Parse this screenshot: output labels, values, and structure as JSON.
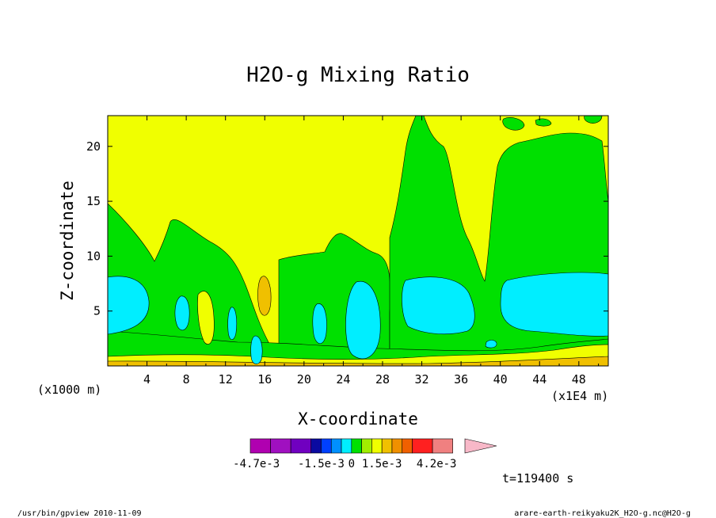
{
  "chart_data": {
    "type": "heatmap",
    "title": "H2O-g Mixing Ratio",
    "xlabel": "X-coordinate",
    "ylabel": "Z-coordinate",
    "x_unit_note": "(x1E4 m)",
    "y_unit_note": "(x1000 m)",
    "xlim": [
      0,
      51
    ],
    "ylim": [
      0,
      22.8
    ],
    "x_ticks": [
      "4",
      "8",
      "12",
      "16",
      "20",
      "24",
      "28",
      "32",
      "36",
      "40",
      "44",
      "48"
    ],
    "x_tick_values": [
      4,
      8,
      12,
      16,
      20,
      24,
      28,
      32,
      36,
      40,
      44,
      48
    ],
    "y_ticks": [
      "5",
      "10",
      "15",
      "20"
    ],
    "y_tick_values": [
      5,
      10,
      15,
      20
    ],
    "timestamp": "t=119400 s",
    "colorbar": {
      "labels": [
        "-4.7e-3",
        "-1.5e-3",
        "0",
        "1.5e-3",
        "4.2e-3"
      ],
      "label_positions": [
        -4.7,
        -1.5,
        0,
        1.5,
        4.2
      ],
      "range": [
        -5.0,
        5.6
      ],
      "bins": [
        {
          "lo": -5.0,
          "hi": -4.0,
          "color": "#b000b0"
        },
        {
          "lo": -4.0,
          "hi": -3.0,
          "color": "#a010c0"
        },
        {
          "lo": -3.0,
          "hi": -2.0,
          "color": "#7000c0"
        },
        {
          "lo": -2.0,
          "hi": -1.5,
          "color": "#0a0aa0"
        },
        {
          "lo": -1.5,
          "hi": -1.0,
          "color": "#0040ff"
        },
        {
          "lo": -1.0,
          "hi": -0.5,
          "color": "#0090ff"
        },
        {
          "lo": -0.5,
          "hi": 0.0,
          "color": "#00eeff"
        },
        {
          "lo": 0.0,
          "hi": 0.5,
          "color": "#00e000"
        },
        {
          "lo": 0.5,
          "hi": 1.0,
          "color": "#a0ee00"
        },
        {
          "lo": 1.0,
          "hi": 1.5,
          "color": "#f0ff00"
        },
        {
          "lo": 1.5,
          "hi": 2.0,
          "color": "#f0c000"
        },
        {
          "lo": 2.0,
          "hi": 2.5,
          "color": "#f09000"
        },
        {
          "lo": 2.5,
          "hi": 3.0,
          "color": "#f06000"
        },
        {
          "lo": 3.0,
          "hi": 4.0,
          "color": "#ff2020"
        },
        {
          "lo": 4.0,
          "hi": 5.0,
          "color": "#f08080"
        }
      ],
      "arrow_color": "#f8b8c8"
    },
    "grid": false,
    "legend": "colorbar-bottom"
  },
  "footer": {
    "left": "/usr/bin/gpview  2010-11-09",
    "right": "arare-earth-reikyaku2K_H2O-g.nc@H2O-g"
  }
}
